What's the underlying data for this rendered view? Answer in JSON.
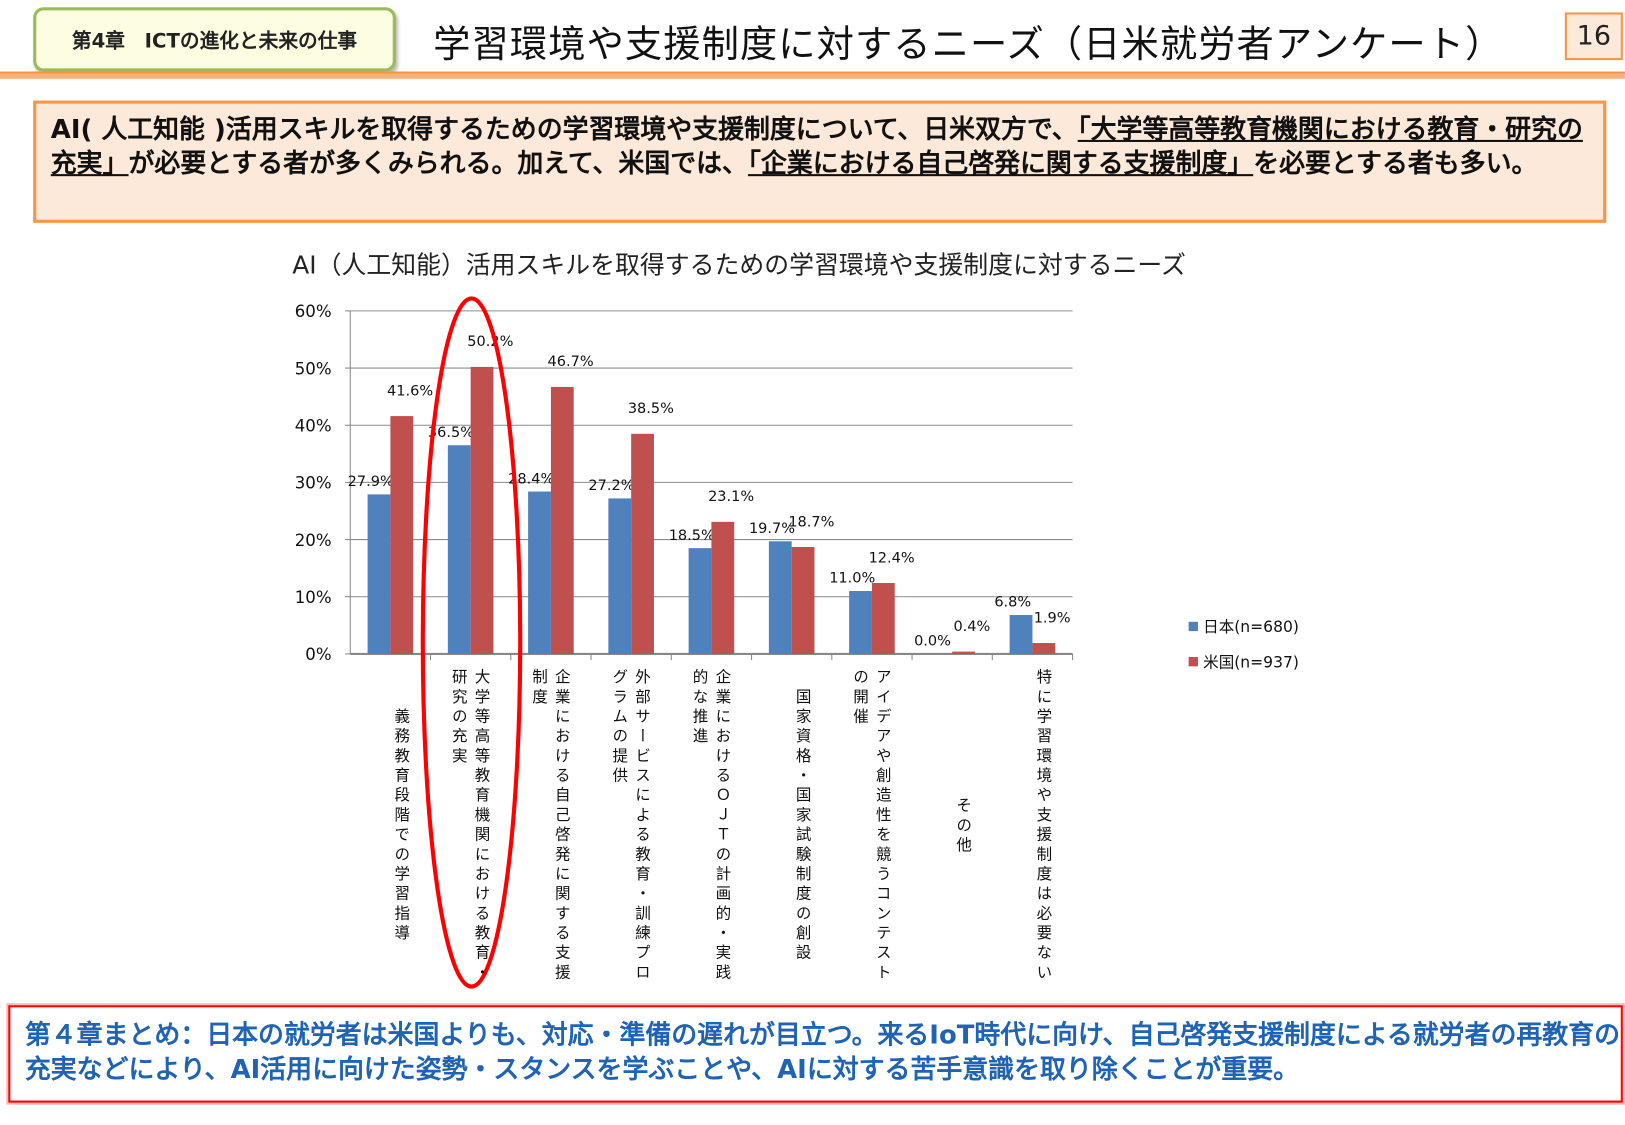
{
  "header": {
    "chapter": "第4章　ICTの進化と未来の仕事",
    "title": "学習環境や支援制度に対するニーズ（日米就労者アンケート）",
    "page_number": "16"
  },
  "summary": {
    "p1": "AI( 人工知能 )活用スキルを取得するための学習環境や支援制度について、日米双方で、",
    "u1": "「大学等高等教育機関における教育・研究の充実」",
    "p2": "が必要とする者が多くみられる。加えて、米国では、",
    "u2": "「企業における自己啓発に関する支援制度」",
    "p3": "を必要とする者も多い。"
  },
  "chart_data": {
    "type": "bar",
    "title": "AI（人工知能）活用スキルを取得するための学習環境や支援制度に対するニーズ",
    "categories": [
      "義務教育段階での学習指導",
      "大学等高等教育機関における教育・\n研究の充実",
      "企業における自己啓発に関する支援\n制度",
      "外部サービスによる教育・訓練プロ\nグラムの提供",
      "企業におけるＯＪＴの計画的・実践\n的な推進",
      "国家資格・国家試験制度の創設",
      "アイデアや創造性を競うコンテスト\nの開催",
      "その他",
      "特に学習環境や支援制度は必要ない"
    ],
    "series": [
      {
        "name": "日本(n=680)",
        "color": "#4f81bd",
        "values": [
          27.9,
          36.5,
          28.4,
          27.2,
          18.5,
          19.7,
          11.0,
          0.0,
          6.8
        ]
      },
      {
        "name": "米国(n=937)",
        "color": "#c0504d",
        "values": [
          41.6,
          50.2,
          46.7,
          38.5,
          23.1,
          18.7,
          12.4,
          0.4,
          1.9
        ]
      }
    ],
    "y_ticks": [
      "0%",
      "10%",
      "20%",
      "30%",
      "40%",
      "50%",
      "60%"
    ],
    "ylim": [
      0,
      60
    ],
    "grid": true,
    "legend_position": "right",
    "highlight": "大学等高等教育機関における教育・研究の充実"
  },
  "footer": {
    "text": "第４章まとめ：日本の就労者は米国よりも、対応・準備の遅れが目立つ。来るIoT時代に向け、自己啓発支援制度による就労者の再教育の充実などにより、AI活用に向けた姿勢・スタンスを学ぶことや、AIに対する苦手意識を取り除くことが重要。"
  }
}
